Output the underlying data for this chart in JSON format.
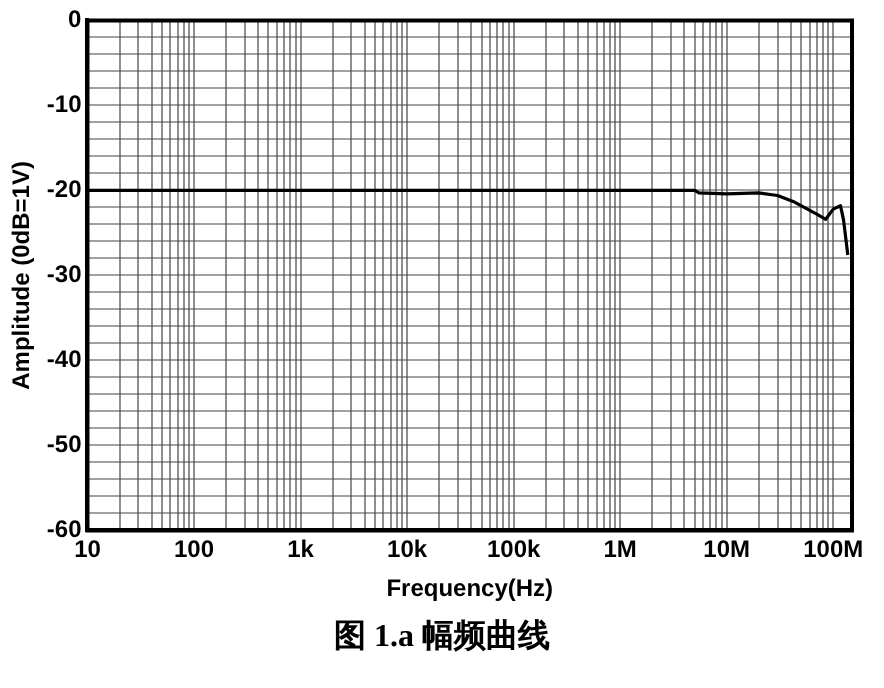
{
  "chart_data": {
    "type": "line",
    "title": "图 1.a 幅频曲线",
    "xlabel": "Frequency(Hz)",
    "ylabel": "Amplitude (0dB=1V)",
    "log": "x",
    "grid": true,
    "legend": false,
    "marker": "none",
    "line_style": "solid",
    "x": [
      10,
      1000000,
      5000000,
      5500000,
      10000000,
      20000000,
      30000000,
      42000000,
      70000000,
      85000000,
      100000000,
      117000000,
      125000000,
      137000000
    ],
    "series": [
      {
        "color": "#000000",
        "values": [
          -20,
          -20,
          -20,
          -20.3,
          -20.4,
          -20.3,
          -20.6,
          -21.3,
          -22.8,
          -23.4,
          -22.2,
          -21.8,
          -23.5,
          -27.6
        ]
      }
    ],
    "xlim": [
      10,
      150000000
    ],
    "xticks": [
      10,
      {
        "value": 20,
        "label": null
      },
      {
        "value": 30,
        "label": null
      },
      {
        "value": 40,
        "label": null
      },
      {
        "value": 50,
        "label": null
      },
      {
        "value": 60,
        "label": null
      },
      {
        "value": 70,
        "label": null
      },
      {
        "value": 80,
        "label": null
      },
      {
        "value": 90,
        "label": null
      },
      100,
      {
        "value": 200,
        "label": null
      },
      {
        "value": 300,
        "label": null
      },
      {
        "value": 400,
        "label": null
      },
      {
        "value": 500,
        "label": null
      },
      {
        "value": 600,
        "label": null
      },
      {
        "value": 700,
        "label": null
      },
      {
        "value": 800,
        "label": null
      },
      {
        "value": 900,
        "label": null
      },
      {
        "value": 1000,
        "label": "1k"
      },
      {
        "value": 2000,
        "label": null
      },
      {
        "value": 3000,
        "label": null
      },
      {
        "value": 4000,
        "label": null
      },
      {
        "value": 5000,
        "label": null
      },
      {
        "value": 6000,
        "label": null
      },
      {
        "value": 7000,
        "label": null
      },
      {
        "value": 8000,
        "label": null
      },
      {
        "value": 9000,
        "label": null
      },
      {
        "value": 10000,
        "label": "10k"
      },
      {
        "value": 20000,
        "label": null
      },
      {
        "value": 30000,
        "label": null
      },
      {
        "value": 40000,
        "label": null
      },
      {
        "value": 50000,
        "label": null
      },
      {
        "value": 60000,
        "label": null
      },
      {
        "value": 70000,
        "label": null
      },
      {
        "value": 80000,
        "label": null
      },
      {
        "value": 90000,
        "label": null
      },
      {
        "value": 100000,
        "label": "100k"
      },
      {
        "value": 200000,
        "label": null
      },
      {
        "value": 300000,
        "label": null
      },
      {
        "value": 400000,
        "label": null
      },
      {
        "value": 500000,
        "label": null
      },
      {
        "value": 600000,
        "label": null
      },
      {
        "value": 700000,
        "label": null
      },
      {
        "value": 800000,
        "label": null
      },
      {
        "value": 900000,
        "label": null
      },
      {
        "value": 1000000,
        "label": "1M"
      },
      {
        "value": 2000000,
        "label": null
      },
      {
        "value": 3000000,
        "label": null
      },
      {
        "value": 4000000,
        "label": null
      },
      {
        "value": 5000000,
        "label": null
      },
      {
        "value": 6000000,
        "label": null
      },
      {
        "value": 7000000,
        "label": null
      },
      {
        "value": 8000000,
        "label": null
      },
      {
        "value": 9000000,
        "label": null
      },
      {
        "value": 10000000,
        "label": "10M"
      },
      {
        "value": 20000000,
        "label": null
      },
      {
        "value": 30000000,
        "label": null
      },
      {
        "value": 40000000,
        "label": null
      },
      {
        "value": 50000000,
        "label": null
      },
      {
        "value": 60000000,
        "label": null
      },
      {
        "value": 70000000,
        "label": null
      },
      {
        "value": 80000000,
        "label": null
      },
      {
        "value": 90000000,
        "label": null
      },
      {
        "value": 100000000,
        "label": "100M"
      }
    ],
    "ylim": [
      -60,
      0
    ],
    "yticks": [
      -60,
      {
        "value": -58,
        "label": null
      },
      {
        "value": -56,
        "label": null
      },
      {
        "value": -54,
        "label": null
      },
      {
        "value": -52,
        "label": null
      },
      -50,
      {
        "value": -48,
        "label": null
      },
      {
        "value": -46,
        "label": null
      },
      {
        "value": -44,
        "label": null
      },
      {
        "value": -42,
        "label": null
      },
      -40,
      {
        "value": -38,
        "label": null
      },
      {
        "value": -36,
        "label": null
      },
      {
        "value": -34,
        "label": null
      },
      {
        "value": -32,
        "label": null
      },
      -30,
      {
        "value": -28,
        "label": null
      },
      {
        "value": -26,
        "label": null
      },
      {
        "value": -24,
        "label": null
      },
      {
        "value": -22,
        "label": null
      },
      -20,
      {
        "value": -18,
        "label": null
      },
      {
        "value": -16,
        "label": null
      },
      {
        "value": -14,
        "label": null
      },
      {
        "value": -12,
        "label": null
      },
      -10,
      {
        "value": -8,
        "label": null
      },
      {
        "value": -6,
        "label": null
      },
      {
        "value": -4,
        "label": null
      },
      {
        "value": -2,
        "label": null
      },
      0
    ]
  }
}
